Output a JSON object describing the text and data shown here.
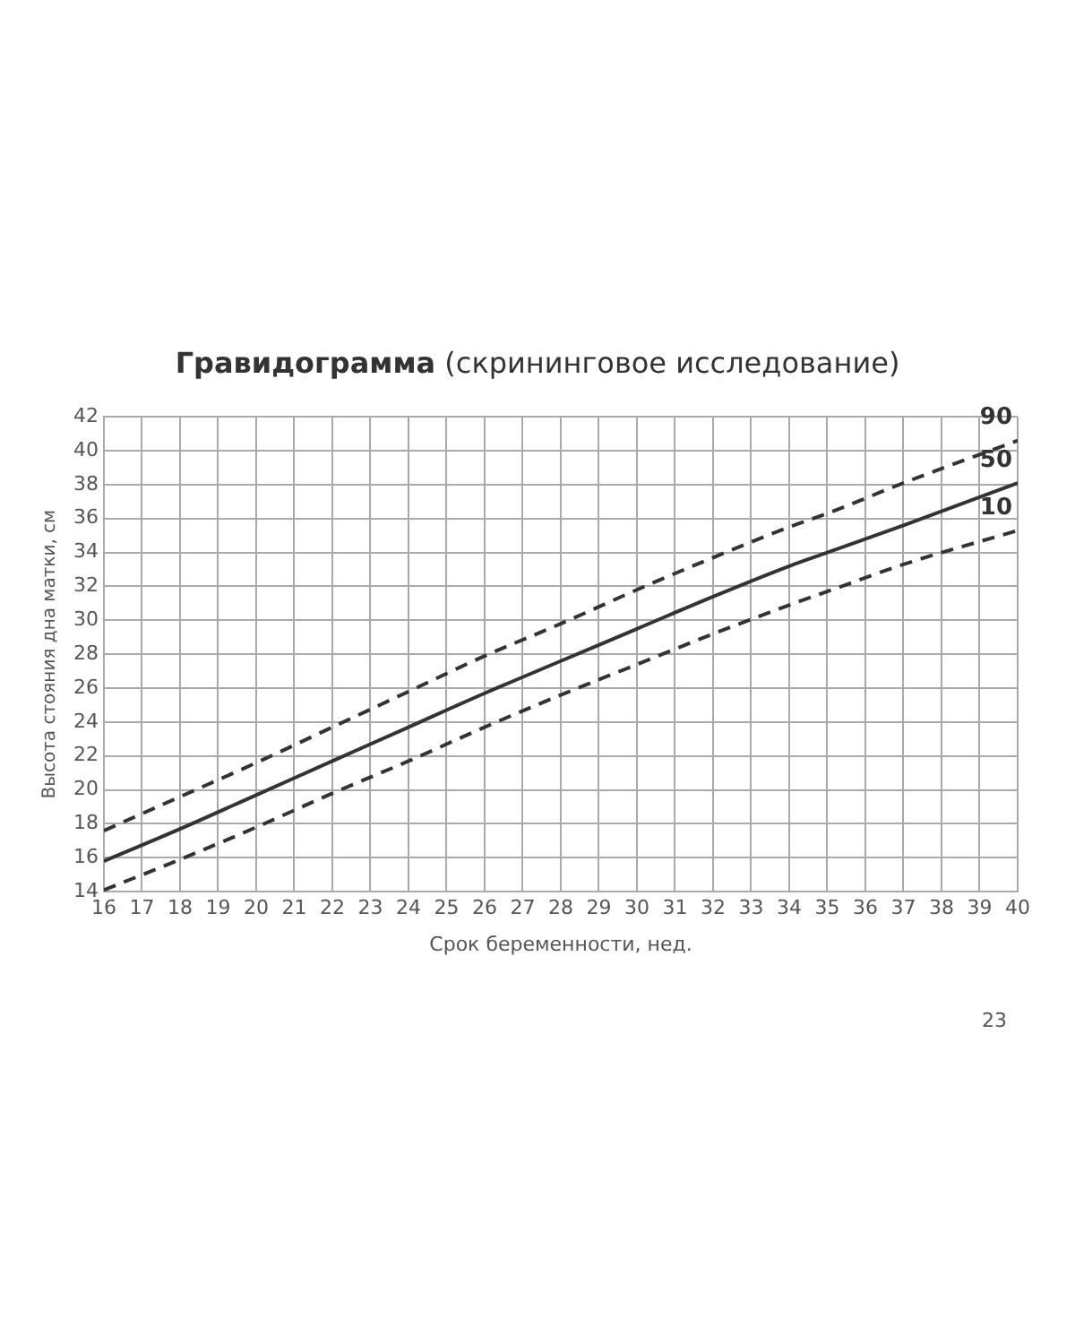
{
  "chart_data": {
    "type": "line",
    "title": "Гравидограмма (скрининговое исследование)",
    "xlabel": "Срок беременности, нед.",
    "ylabel": "Высота стояния дна матки, см",
    "annotations": [
      "23"
    ],
    "x": [
      16,
      18,
      20,
      22,
      24,
      26,
      28,
      30,
      32,
      34,
      35,
      37,
      40
    ],
    "series": [
      {
        "name": "90",
        "color": "#333333",
        "line_style": "dashed",
        "values": [
          17.6,
          19.6,
          21.6,
          23.7,
          25.8,
          27.9,
          29.8,
          31.8,
          33.7,
          35.5,
          36.3,
          38.1,
          40.6
        ]
      },
      {
        "name": "50",
        "color": "#333333",
        "line_style": "solid",
        "values": [
          15.8,
          17.7,
          19.7,
          21.7,
          23.7,
          25.7,
          27.6,
          29.5,
          31.4,
          33.2,
          34.0,
          35.6,
          38.1
        ]
      },
      {
        "name": "10",
        "color": "#333333",
        "line_style": "dashed",
        "values": [
          14.1,
          15.9,
          17.8,
          19.8,
          21.7,
          23.7,
          25.6,
          27.4,
          29.2,
          30.9,
          31.7,
          33.3,
          35.3
        ]
      }
    ],
    "xlim": [
      16,
      40
    ],
    "xticks": [
      16,
      17,
      18,
      19,
      20,
      21,
      22,
      23,
      24,
      25,
      26,
      27,
      28,
      29,
      30,
      31,
      32,
      33,
      34,
      35,
      36,
      37,
      38,
      39,
      40
    ],
    "ylim": [
      14,
      42
    ],
    "yticks": [
      14,
      16,
      18,
      20,
      22,
      24,
      26,
      28,
      30,
      32,
      34,
      36,
      38,
      40,
      42
    ],
    "grid": true,
    "legend": false,
    "marker": "none"
  }
}
